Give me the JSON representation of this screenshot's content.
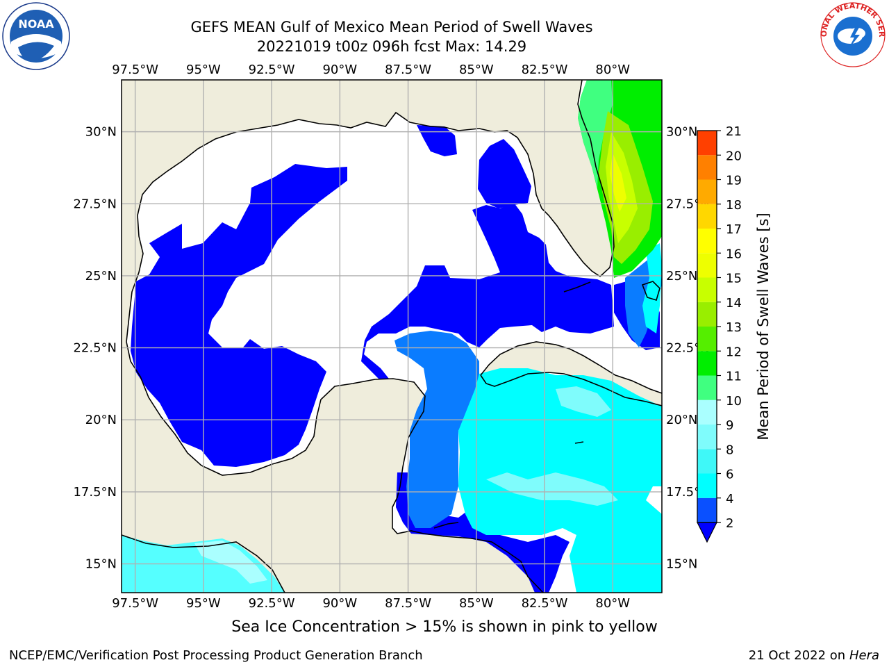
{
  "header": {
    "title_line1": "GEFS MEAN Gulf of Mexico Mean Period of Swell Waves",
    "title_line2": "20221019 t00z 096h fcst   Max: 14.29"
  },
  "logos": {
    "left": "NOAA",
    "right": "NATIONAL WEATHER SERVICE"
  },
  "map": {
    "lon_labels": [
      "97.5°W",
      "95°W",
      "92.5°W",
      "90°W",
      "87.5°W",
      "85°W",
      "82.5°W",
      "80°W"
    ],
    "lat_labels_left": [
      "30°N",
      "27.5°N",
      "25°N",
      "22.5°N",
      "20°N",
      "17.5°N",
      "15°N"
    ],
    "lat_labels_right": [
      "30°N",
      "27.5°N",
      "25°N",
      "22.5°N",
      "20°N",
      "17.5°N",
      "15°N"
    ],
    "extent": {
      "lon_min": -98.0,
      "lon_max": -78.2,
      "lat_min": 14.0,
      "lat_max": 31.8
    }
  },
  "colorbar": {
    "label": "Mean Period of Swell Waves [s]",
    "ticks": [
      2,
      4,
      6,
      8,
      9,
      10,
      11,
      12,
      13,
      14,
      15,
      16,
      17,
      18,
      19,
      20,
      21
    ],
    "colors": [
      "#0a50ff",
      "#00ffff",
      "#3ff8f8",
      "#7ffcfc",
      "#aaffff",
      "#40ff80",
      "#00ee00",
      "#55ee00",
      "#99ee00",
      "#c8ff00",
      "#eeff00",
      "#ffff00",
      "#ffd700",
      "#ffaa00",
      "#ff8000",
      "#ff4000",
      "#ff0000"
    ]
  },
  "colors": {
    "land": "#efeddc",
    "blue": "#0000ff",
    "ocean_cyan": "#00ffff",
    "cyan_light": "#55ffff",
    "dodger": "#0a7cff",
    "grid": "#b0b0b0"
  },
  "footer": {
    "note": "Sea Ice Concentration > 15% is shown in pink to yellow",
    "left": "NCEP/EMC/Verification Post Processing Product Generation Branch",
    "right_date": "21 Oct 2022 on ",
    "right_host": "Hera"
  }
}
